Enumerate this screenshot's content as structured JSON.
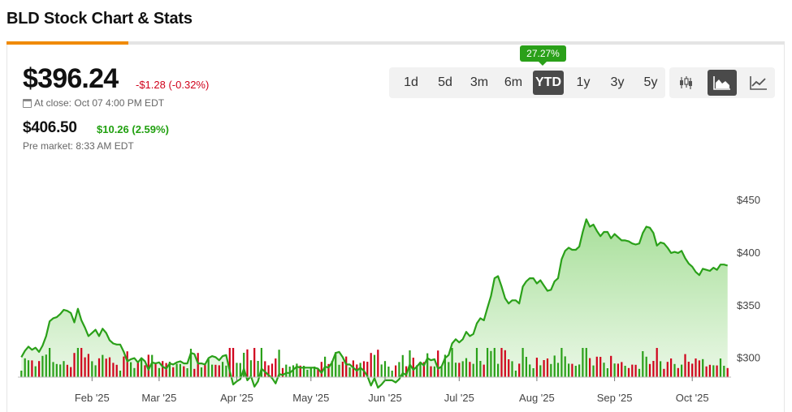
{
  "page": {
    "title": "BLD Stock Chart & Stats"
  },
  "quote": {
    "price": "$396.24",
    "change": "-$1.28 (-0.32%)",
    "close_label": "At close: Oct 07 4:00 PM EDT",
    "premarket_price": "$406.50",
    "premarket_change": "$10.26 (2.59%)",
    "premarket_label": "Pre market: 8:33 AM EDT"
  },
  "ranges": {
    "items": [
      "1d",
      "5d",
      "3m",
      "6m",
      "YTD",
      "1y",
      "3y",
      "5y"
    ],
    "active": "YTD",
    "active_return": "27.27%"
  },
  "chart_types": {
    "items": [
      "candlestick-icon",
      "area-chart-icon",
      "line-chart-icon"
    ],
    "active": "area-chart-icon"
  },
  "colors": {
    "line": "#2aa019",
    "fill_top": "#a8df9a",
    "fill_bottom": "#eef9eb",
    "volume_up": "#2aa019",
    "volume_down": "#d0021b",
    "accent": "#f08a00",
    "negative": "#d0021b",
    "positive": "#21a010"
  },
  "chart_data": {
    "type": "area",
    "title": "",
    "xlabel": "",
    "ylabel": "",
    "x_ticks": [
      "Feb '25",
      "Mar '25",
      "Apr '25",
      "May '25",
      "Jun '25",
      "Jul '25",
      "Aug '25",
      "Sep '25",
      "Oct '25"
    ],
    "y_ticks": [
      "$300",
      "$350",
      "$400",
      "$450"
    ],
    "ylim": [
      282,
      467
    ],
    "grid": false,
    "series": [
      {
        "values": [
          [
            1,
            301
          ],
          [
            2,
            307
          ],
          [
            3,
            311
          ],
          [
            4,
            308
          ],
          [
            5,
            310
          ],
          [
            6,
            306
          ],
          [
            7,
            312
          ],
          [
            8,
            321
          ],
          [
            9,
            335
          ],
          [
            10,
            338
          ],
          [
            11,
            339
          ],
          [
            12,
            342
          ],
          [
            13,
            346
          ],
          [
            14,
            345
          ],
          [
            15,
            343
          ],
          [
            16,
            334
          ],
          [
            17,
            347
          ],
          [
            18,
            336
          ],
          [
            19,
            329
          ],
          [
            20,
            321
          ],
          [
            21,
            324
          ],
          [
            22,
            327
          ],
          [
            23,
            321
          ],
          [
            24,
            328
          ],
          [
            25,
            324
          ],
          [
            26,
            317
          ],
          [
            27,
            314
          ],
          [
            28,
            313
          ],
          [
            29,
            313
          ],
          [
            30,
            306
          ],
          [
            31,
            297
          ],
          [
            32,
            299
          ],
          [
            33,
            300
          ],
          [
            34,
            296
          ],
          [
            35,
            300
          ],
          [
            36,
            297
          ],
          [
            37,
            289
          ],
          [
            38,
            296
          ],
          [
            39,
            295
          ],
          [
            40,
            296
          ],
          [
            41,
            292
          ],
          [
            42,
            290
          ],
          [
            43,
            295
          ],
          [
            44,
            294
          ],
          [
            45,
            296
          ],
          [
            46,
            297
          ],
          [
            47,
            295
          ],
          [
            48,
            295
          ],
          [
            49,
            305
          ],
          [
            50,
            304
          ],
          [
            51,
            295
          ],
          [
            52,
            295
          ],
          [
            53,
            294
          ],
          [
            54,
            300
          ],
          [
            55,
            302
          ],
          [
            56,
            301
          ],
          [
            57,
            298
          ],
          [
            58,
            302
          ],
          [
            59,
            303
          ],
          [
            60,
            288
          ],
          [
            61,
            275
          ],
          [
            62,
            278
          ],
          [
            63,
            280
          ],
          [
            64,
            290
          ],
          [
            65,
            279
          ],
          [
            66,
            283
          ],
          [
            67,
            273
          ],
          [
            68,
            278
          ],
          [
            69,
            290
          ],
          [
            70,
            287
          ],
          [
            71,
            284
          ],
          [
            72,
            281
          ],
          [
            73,
            276
          ],
          [
            74,
            285
          ],
          [
            75,
            284
          ],
          [
            76,
            286
          ],
          [
            77,
            286
          ],
          [
            78,
            289
          ],
          [
            79,
            292
          ],
          [
            80,
            291
          ],
          [
            81,
            291
          ],
          [
            82,
            291
          ],
          [
            83,
            291
          ],
          [
            84,
            291
          ],
          [
            85,
            290
          ],
          [
            86,
            286
          ],
          [
            87,
            292
          ],
          [
            88,
            291
          ],
          [
            89,
            296
          ],
          [
            90,
            305
          ],
          [
            91,
            306
          ],
          [
            92,
            301
          ],
          [
            93,
            294
          ],
          [
            94,
            294
          ],
          [
            95,
            291
          ],
          [
            96,
            288
          ],
          [
            97,
            291
          ],
          [
            98,
            288
          ],
          [
            99,
            283
          ],
          [
            100,
            274
          ],
          [
            101,
            281
          ],
          [
            102,
            272
          ],
          [
            103,
            275
          ],
          [
            104,
            279
          ],
          [
            105,
            279
          ],
          [
            106,
            279
          ],
          [
            107,
            277
          ],
          [
            108,
            280
          ],
          [
            109,
            286
          ],
          [
            110,
            284
          ],
          [
            111,
            294
          ],
          [
            112,
            289
          ],
          [
            113,
            292
          ],
          [
            114,
            296
          ],
          [
            115,
            293
          ],
          [
            116,
            300
          ],
          [
            117,
            298
          ],
          [
            118,
            299
          ],
          [
            119,
            290
          ],
          [
            120,
            292
          ],
          [
            121,
            300
          ],
          [
            122,
            303
          ],
          [
            123,
            314
          ],
          [
            124,
            318
          ],
          [
            125,
            315
          ],
          [
            126,
            318
          ],
          [
            127,
            325
          ],
          [
            128,
            321
          ],
          [
            129,
            323
          ],
          [
            130,
            333
          ],
          [
            131,
            338
          ],
          [
            132,
            336
          ],
          [
            133,
            348
          ],
          [
            134,
            359
          ],
          [
            135,
            376
          ],
          [
            136,
            378
          ],
          [
            137,
            368
          ],
          [
            138,
            357
          ],
          [
            139,
            352
          ],
          [
            140,
            355
          ],
          [
            141,
            355
          ],
          [
            142,
            352
          ],
          [
            143,
            368
          ],
          [
            144,
            373
          ],
          [
            145,
            376
          ],
          [
            146,
            376
          ],
          [
            147,
            371
          ],
          [
            148,
            374
          ],
          [
            149,
            369
          ],
          [
            150,
            364
          ],
          [
            151,
            365
          ],
          [
            152,
            373
          ],
          [
            153,
            376
          ],
          [
            154,
            394
          ],
          [
            155,
            402
          ],
          [
            156,
            405
          ],
          [
            157,
            403
          ],
          [
            158,
            403
          ],
          [
            159,
            406
          ],
          [
            160,
            420
          ],
          [
            161,
            432
          ],
          [
            162,
            425
          ],
          [
            163,
            427
          ],
          [
            164,
            421
          ],
          [
            165,
            416
          ],
          [
            166,
            420
          ],
          [
            167,
            420
          ],
          [
            168,
            414
          ],
          [
            169,
            418
          ],
          [
            170,
            415
          ],
          [
            171,
            412
          ],
          [
            172,
            412
          ],
          [
            173,
            411
          ],
          [
            174,
            409
          ],
          [
            175,
            408
          ],
          [
            176,
            409
          ],
          [
            177,
            419
          ],
          [
            178,
            425
          ],
          [
            179,
            424
          ],
          [
            180,
            419
          ],
          [
            181,
            407
          ],
          [
            182,
            410
          ],
          [
            183,
            409
          ],
          [
            184,
            405
          ],
          [
            185,
            400
          ],
          [
            186,
            401
          ],
          [
            187,
            400
          ],
          [
            188,
            402
          ],
          [
            189,
            395
          ],
          [
            190,
            390
          ],
          [
            191,
            387
          ],
          [
            192,
            382
          ],
          [
            193,
            379
          ],
          [
            194,
            385
          ],
          [
            195,
            384
          ],
          [
            196,
            383
          ],
          [
            197,
            386
          ],
          [
            198,
            384
          ],
          [
            199,
            389
          ],
          [
            200,
            389
          ],
          [
            201,
            388
          ]
        ]
      }
    ],
    "volume_visible": true
  }
}
